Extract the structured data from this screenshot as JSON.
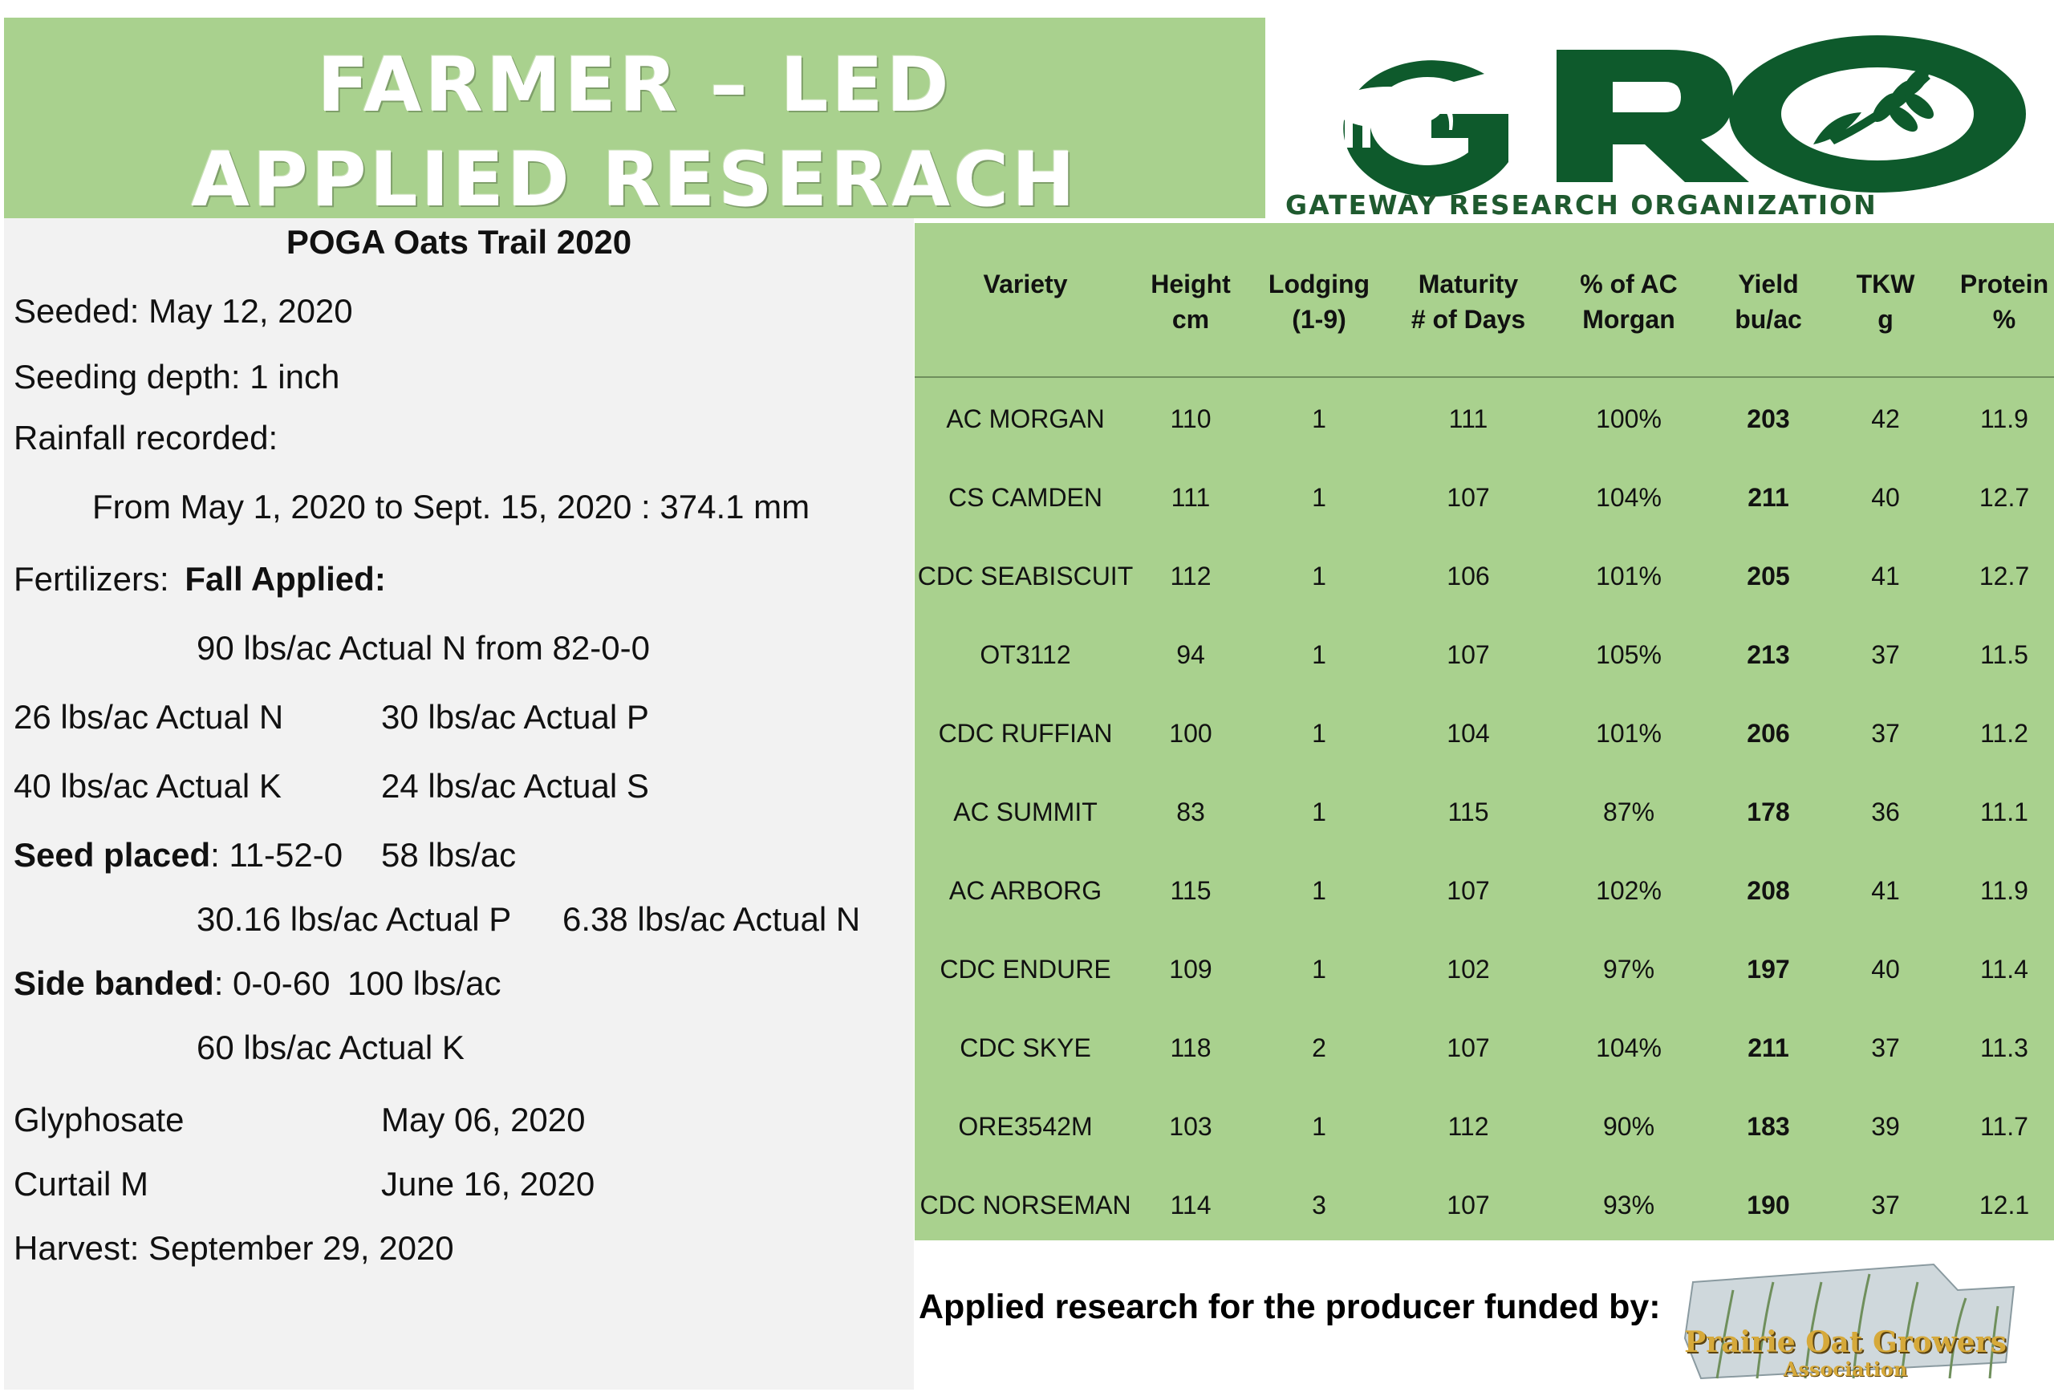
{
  "banner": {
    "line1": "FARMER – LED",
    "line2": "APPLIED RESERACH"
  },
  "logo": {
    "letters": "GRO",
    "caption": "GATEWAY RESEARCH ORGANIZATION",
    "color": "#0e5a2c"
  },
  "trial": {
    "title": "POGA Oats Trail 2020",
    "seeded": "Seeded: May 12, 2020",
    "seeding_depth": "Seeding depth: 1 inch",
    "rainfall_label": "Rainfall recorded:",
    "rainfall_detail": "From May 1, 2020 to Sept. 15, 2020  : 374.1 mm",
    "fertilizers_label": "Fertilizers:",
    "fall_applied_label": "Fall Applied:",
    "fall_n": "90 lbs/ac Actual N from 82-0-0",
    "n_26": "26 lbs/ac Actual N",
    "p_30": "30 lbs/ac Actual P",
    "k_40": "40 lbs/ac Actual K",
    "s_24": "24 lbs/ac Actual S",
    "seed_placed_label": "Seed placed",
    "seed_placed_product": ": 11-52-0",
    "seed_placed_rate": "58 lbs/ac",
    "seed_placed_p": "30.16 lbs/ac Actual P",
    "seed_placed_n": "6.38 lbs/ac Actual N",
    "side_banded_label": "Side banded",
    "side_banded_product": ": 0-0-60",
    "side_banded_rate": "100 lbs/ac",
    "side_banded_k": "60 lbs/ac Actual K",
    "glyphosate_label": "Glyphosate",
    "glyphosate_date": "May 06, 2020",
    "curtail_label": "Curtail M",
    "curtail_date": "June 16, 2020",
    "harvest": "Harvest:  September 29, 2020"
  },
  "table": {
    "headers": [
      {
        "line1": "Variety",
        "line2": ""
      },
      {
        "line1": "Height",
        "line2": "cm"
      },
      {
        "line1": "Lodging",
        "line2": "(1-9)"
      },
      {
        "line1": "Maturity",
        "line2": "# of Days"
      },
      {
        "line1": "% of AC",
        "line2": "Morgan"
      },
      {
        "line1": "Yield",
        "line2": "bu/ac"
      },
      {
        "line1": "TKW",
        "line2": "g"
      },
      {
        "line1": "Protein",
        "line2": "%"
      }
    ],
    "rows": [
      [
        "AC MORGAN",
        "110",
        "1",
        "111",
        "100%",
        "203",
        "42",
        "11.9"
      ],
      [
        "CS CAMDEN",
        "111",
        "1",
        "107",
        "104%",
        "211",
        "40",
        "12.7"
      ],
      [
        "CDC SEABISCUIT",
        "112",
        "1",
        "106",
        "101%",
        "205",
        "41",
        "12.7"
      ],
      [
        "OT3112",
        "94",
        "1",
        "107",
        "105%",
        "213",
        "37",
        "11.5"
      ],
      [
        "CDC RUFFIAN",
        "100",
        "1",
        "104",
        "101%",
        "206",
        "37",
        "11.2"
      ],
      [
        "AC SUMMIT",
        "83",
        "1",
        "115",
        "87%",
        "178",
        "36",
        "11.1"
      ],
      [
        "AC ARBORG",
        "115",
        "1",
        "107",
        "102%",
        "208",
        "41",
        "11.9"
      ],
      [
        "CDC ENDURE",
        "109",
        "1",
        "102",
        "97%",
        "197",
        "40",
        "11.4"
      ],
      [
        "CDC SKYE",
        "118",
        "2",
        "107",
        "104%",
        "211",
        "37",
        "11.3"
      ],
      [
        "ORE3542M",
        "103",
        "1",
        "112",
        "90%",
        "183",
        "39",
        "11.7"
      ],
      [
        "CDC NORSEMAN",
        "114",
        "3",
        "107",
        "93%",
        "190",
        "37",
        "12.1"
      ]
    ]
  },
  "footer": {
    "funded_by": "Applied research for the producer funded by:",
    "poga_line1": "Prairie Oat Growers",
    "poga_line2": "Association"
  },
  "colors": {
    "green_panel": "#a9d18e",
    "grey_panel": "#f2f2f2",
    "logo_green": "#0e5a2c"
  }
}
